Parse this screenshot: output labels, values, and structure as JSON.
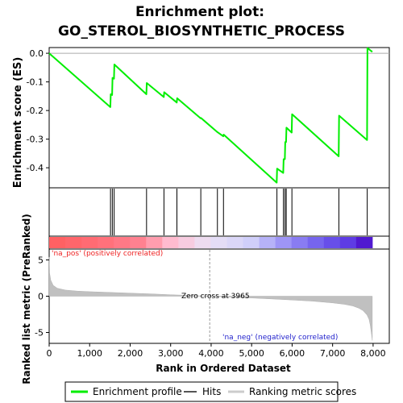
{
  "title_line1": "Enrichment plot:",
  "title_line2": "GO_STEROL_BIOSYNTHETIC_PROCESS",
  "chart_data": {
    "type": "line",
    "panels": {
      "enrichment": {
        "ylabel": "Enrichment score (ES)",
        "ylim": [
          -0.47,
          0.02
        ],
        "yticks": [
          "0.0",
          "-0.1",
          "-0.2",
          "-0.3",
          "-0.4"
        ],
        "series": [
          {
            "name": "Enrichment profile",
            "color": "#00ee00",
            "x": [
              0,
              1510,
              1520,
              1555,
              1565,
              1600,
              1610,
              2400,
              2410,
              2830,
              2840,
              3150,
              3160,
              3740,
              3750,
              4150,
              4160,
              4300,
              4310,
              5620,
              5630,
              5780,
              5790,
              5820,
              5830,
              5850,
              5860,
              5990,
              6000,
              7150,
              7160,
              7850,
              7860,
              7980
            ],
            "y": [
              0.0,
              -0.188,
              -0.143,
              -0.146,
              -0.086,
              -0.089,
              -0.039,
              -0.143,
              -0.104,
              -0.153,
              -0.136,
              -0.172,
              -0.157,
              -0.227,
              -0.226,
              -0.275,
              -0.276,
              -0.29,
              -0.284,
              -0.452,
              -0.403,
              -0.418,
              -0.37,
              -0.37,
              -0.31,
              -0.31,
              -0.26,
              -0.277,
              -0.213,
              -0.36,
              -0.218,
              -0.303,
              0.018,
              0.005
            ]
          }
        ]
      },
      "hits": {
        "name": "Hits",
        "positions": [
          1515,
          1560,
          1605,
          2405,
          2835,
          3155,
          3745,
          4155,
          4305,
          5625,
          5785,
          5825,
          5855,
          5995,
          7155,
          7855
        ]
      },
      "ranking": {
        "name": "Ranking metric scores",
        "ylabel": "Ranked list metric (PreRanked)",
        "ylim": [
          -6.5,
          6.5
        ],
        "yticks": [
          "5",
          "0",
          "-5"
        ],
        "curve_x": [
          0,
          10,
          40,
          100,
          200,
          400,
          700,
          1000,
          1500,
          2000,
          2500,
          3000,
          3500,
          3965,
          4500,
          5000,
          5500,
          6000,
          6500,
          7000,
          7300,
          7500,
          7650,
          7750,
          7850,
          7900,
          7930,
          7960,
          7980
        ],
        "curve_y": [
          5.4,
          3.2,
          2.2,
          1.5,
          1.1,
          0.85,
          0.7,
          0.62,
          0.52,
          0.42,
          0.32,
          0.2,
          0.1,
          0.0,
          -0.12,
          -0.24,
          -0.38,
          -0.52,
          -0.68,
          -0.92,
          -1.12,
          -1.35,
          -1.65,
          -1.98,
          -2.6,
          -3.2,
          -4.0,
          -5.2,
          -6.1
        ],
        "annotations": {
          "pos": "'na_pos' (positively correlated)",
          "neg": "'na_neg' (negatively correlated)",
          "zero": "Zero cross at 3965"
        },
        "zero_cross": 3965
      }
    },
    "xlabel": "Rank in Ordered Dataset",
    "xlim": [
      0,
      8400
    ],
    "xticks": [
      "0",
      "1,000",
      "2,000",
      "3,000",
      "4,000",
      "5,000",
      "6,000",
      "7,000",
      "8,000"
    ],
    "xtick_values": [
      0,
      1000,
      2000,
      3000,
      4000,
      5000,
      6000,
      7000,
      8000
    ],
    "total": 7980,
    "colors": {
      "enrichment": "#00ee00",
      "hits": "#000000",
      "ranking": "#c0c0c0",
      "pos_band": "#ff6a6a",
      "neg_band": "#4a30e0"
    },
    "legend": {
      "items": [
        "Enrichment profile",
        "Hits",
        "Ranking metric scores"
      ],
      "placement": "bottom"
    }
  }
}
